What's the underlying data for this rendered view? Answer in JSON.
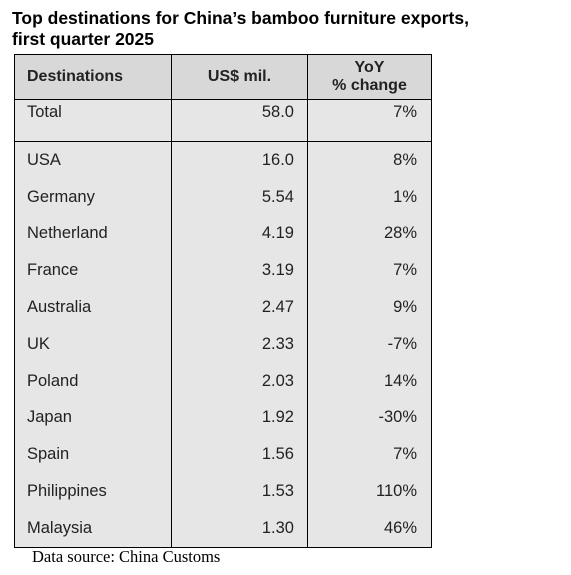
{
  "title_line1": "Top destinations for China’s bamboo furniture exports,",
  "title_line2": "first quarter 2025",
  "header": {
    "destinations": "Destinations",
    "value": "US$ mil.",
    "yoy_line1": "YoY",
    "yoy_line2": "% change"
  },
  "total": {
    "destination": "Total",
    "value": "58.0",
    "yoy": "7%"
  },
  "rows": [
    {
      "destination": "USA",
      "value": "16.0",
      "yoy": "8%"
    },
    {
      "destination": "Germany",
      "value": "5.54",
      "yoy": "1%"
    },
    {
      "destination": "Netherland",
      "value": "4.19",
      "yoy": "28%"
    },
    {
      "destination": "France",
      "value": "3.19",
      "yoy": "7%"
    },
    {
      "destination": "Australia",
      "value": "2.47",
      "yoy": "9%"
    },
    {
      "destination": "UK",
      "value": "2.33",
      "yoy": "-7%"
    },
    {
      "destination": "Poland",
      "value": "2.03",
      "yoy": "14%"
    },
    {
      "destination": "Japan",
      "value": "1.92",
      "yoy": "-30%"
    },
    {
      "destination": "Spain",
      "value": "1.56",
      "yoy": "7%"
    },
    {
      "destination": "Philippines",
      "value": "1.53",
      "yoy": "110%"
    },
    {
      "destination": "Malaysia",
      "value": "1.30",
      "yoy": "46%"
    }
  ],
  "source": "Data source: China Customs"
}
